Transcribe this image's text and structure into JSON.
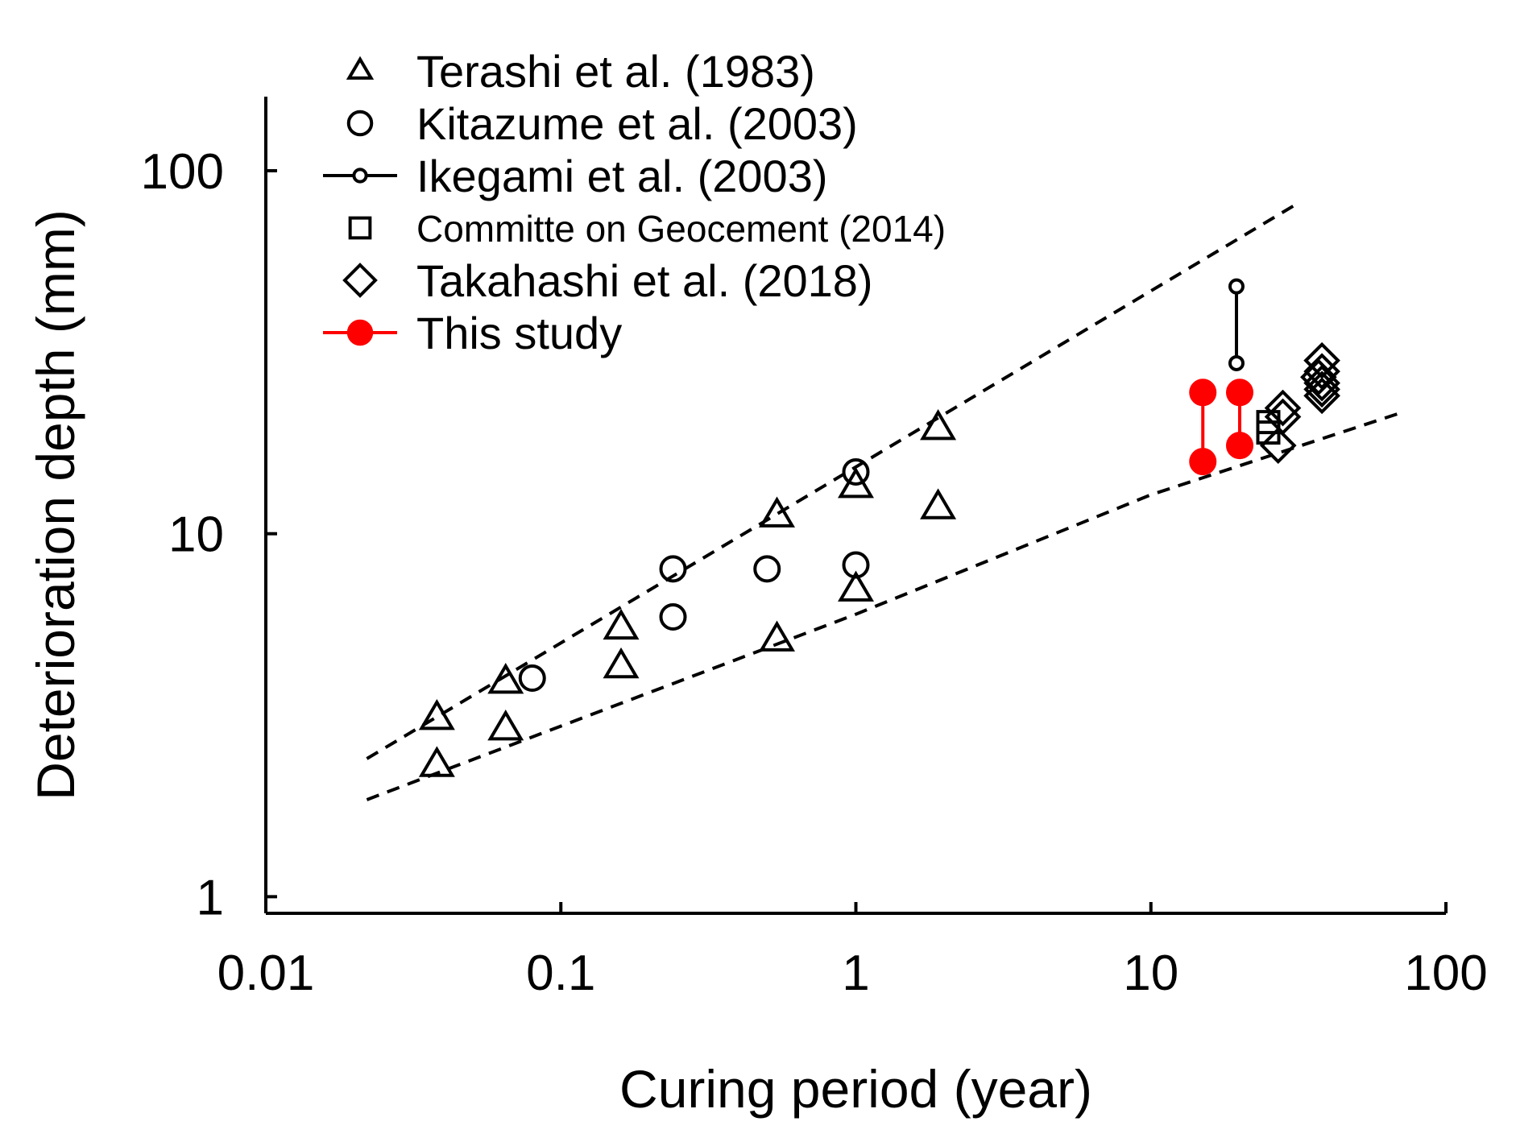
{
  "chart_data": {
    "type": "scatter",
    "xlabel": "Curing period (year)",
    "ylabel": "Deterioration depth (mm)",
    "x_scale": "log",
    "y_scale": "log",
    "xlim": [
      0.01,
      100
    ],
    "ylim": [
      0.9,
      160
    ],
    "x_ticks": [
      {
        "value": 0.01,
        "label": "0.01"
      },
      {
        "value": 0.1,
        "label": "0.1"
      },
      {
        "value": 1,
        "label": "1"
      },
      {
        "value": 10,
        "label": "10"
      },
      {
        "value": 100,
        "label": "100"
      }
    ],
    "y_ticks": [
      {
        "value": 1,
        "label": "1"
      },
      {
        "value": 10,
        "label": "10"
      },
      {
        "value": 100,
        "label": "100"
      }
    ],
    "grid": false,
    "legend_position": "top-left",
    "series": [
      {
        "name": "Terashi et al. (1983)",
        "marker": "triangle",
        "color": "#000000",
        "points": [
          [
            0.038,
            3.1
          ],
          [
            0.038,
            2.3
          ],
          [
            0.065,
            3.9
          ],
          [
            0.065,
            2.9
          ],
          [
            0.16,
            5.5
          ],
          [
            0.16,
            4.3
          ],
          [
            0.54,
            11.2
          ],
          [
            0.54,
            5.1
          ],
          [
            1.0,
            13.5
          ],
          [
            1.0,
            7.0
          ],
          [
            1.9,
            19.5
          ],
          [
            1.9,
            11.8
          ]
        ]
      },
      {
        "name": "Kitazume et al. (2003)",
        "marker": "circle",
        "color": "#000000",
        "points": [
          [
            0.08,
            4.0
          ],
          [
            0.24,
            8.0
          ],
          [
            0.24,
            5.9
          ],
          [
            0.5,
            8.0
          ],
          [
            1.0,
            14.8
          ],
          [
            1.0,
            8.2
          ]
        ]
      },
      {
        "name": "Ikegami et al. (2003)",
        "marker": "circle-line",
        "color": "#000000",
        "points": [
          [
            19.5,
            48.0
          ],
          [
            19.5,
            29.5
          ]
        ]
      },
      {
        "name": "Committe on Geocement (2014)",
        "marker": "square",
        "color": "#000000",
        "points": [
          [
            25.0,
            19.0
          ],
          [
            25.0,
            20.3
          ]
        ]
      },
      {
        "name": "Takahashi et al. (2018)",
        "marker": "diamond",
        "color": "#000000",
        "points": [
          [
            28.0,
            21.0
          ],
          [
            28.0,
            22.2
          ],
          [
            27.0,
            17.5
          ],
          [
            38.0,
            30.0
          ],
          [
            38.0,
            28.0
          ],
          [
            38.0,
            26.0
          ],
          [
            38.0,
            25.0
          ],
          [
            38.0,
            24.0
          ],
          [
            37.0,
            27.0
          ]
        ]
      },
      {
        "name": "This study",
        "marker": "filled-circle-line",
        "color": "#ff0000",
        "points": [
          [
            15.0,
            24.5
          ],
          [
            15.0,
            15.8
          ],
          [
            20.0,
            24.5
          ],
          [
            20.0,
            17.5
          ]
        ]
      }
    ],
    "bounds": [
      {
        "style": "dashed",
        "points": [
          [
            0.022,
            2.4
          ],
          [
            32.0,
            82.0
          ]
        ]
      },
      {
        "style": "dashed",
        "points": [
          [
            0.022,
            1.85
          ],
          [
            1.0,
            6.0
          ],
          [
            10.0,
            12.8
          ],
          [
            70.0,
            21.5
          ]
        ]
      }
    ]
  }
}
